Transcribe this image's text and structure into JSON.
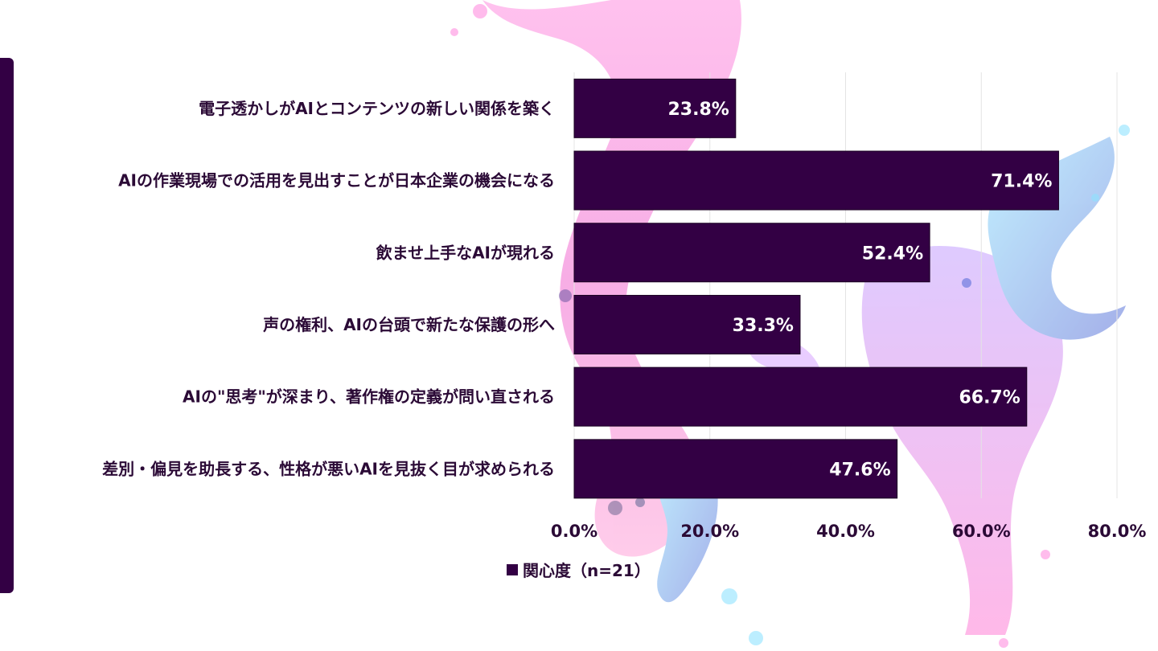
{
  "theme": {
    "bar_color": "#330044",
    "bar_stroke": "#1a0022",
    "text_color": "#2b0a36",
    "grid_color": "#e4e4e4",
    "accent_stripe": "#330044",
    "splash_colors": [
      "#ff7ad9",
      "#e34fc0",
      "#c9a2ff",
      "#7ad8ff",
      "#5a6fd6",
      "#f3b3e6"
    ]
  },
  "chart_data": {
    "type": "bar",
    "orientation": "horizontal",
    "categories": [
      "電子透かしがAIとコンテンツの新しい関係を築く",
      "AIの作業現場での活用を見出すことが日本企業の機会になる",
      "飲ませ上手なAIが現れる",
      "声の権利、AIの台頭で新たな保護の形へ",
      "AIの\"思考\"が深まり、著作権の定義が問い直される",
      "差別・偏見を助長する、性格が悪いAIを見抜く目が求められる"
    ],
    "series": [
      {
        "name": "関心度（n=21）",
        "values": [
          23.8,
          71.4,
          52.4,
          33.3,
          66.7,
          47.6
        ],
        "value_labels": [
          "23.8%",
          "71.4%",
          "52.4%",
          "33.3%",
          "66.7%",
          "47.6%"
        ]
      }
    ],
    "xlim": [
      0,
      80
    ],
    "x_ticks": [
      0,
      20,
      40,
      60,
      80
    ],
    "x_tick_labels": [
      "0.0%",
      "20.0%",
      "40.0%",
      "60.0%",
      "80.0%"
    ],
    "grid": true,
    "legend": {
      "position": "bottom",
      "label": "関心度（n=21）"
    },
    "title": "",
    "xlabel": "",
    "ylabel": ""
  }
}
